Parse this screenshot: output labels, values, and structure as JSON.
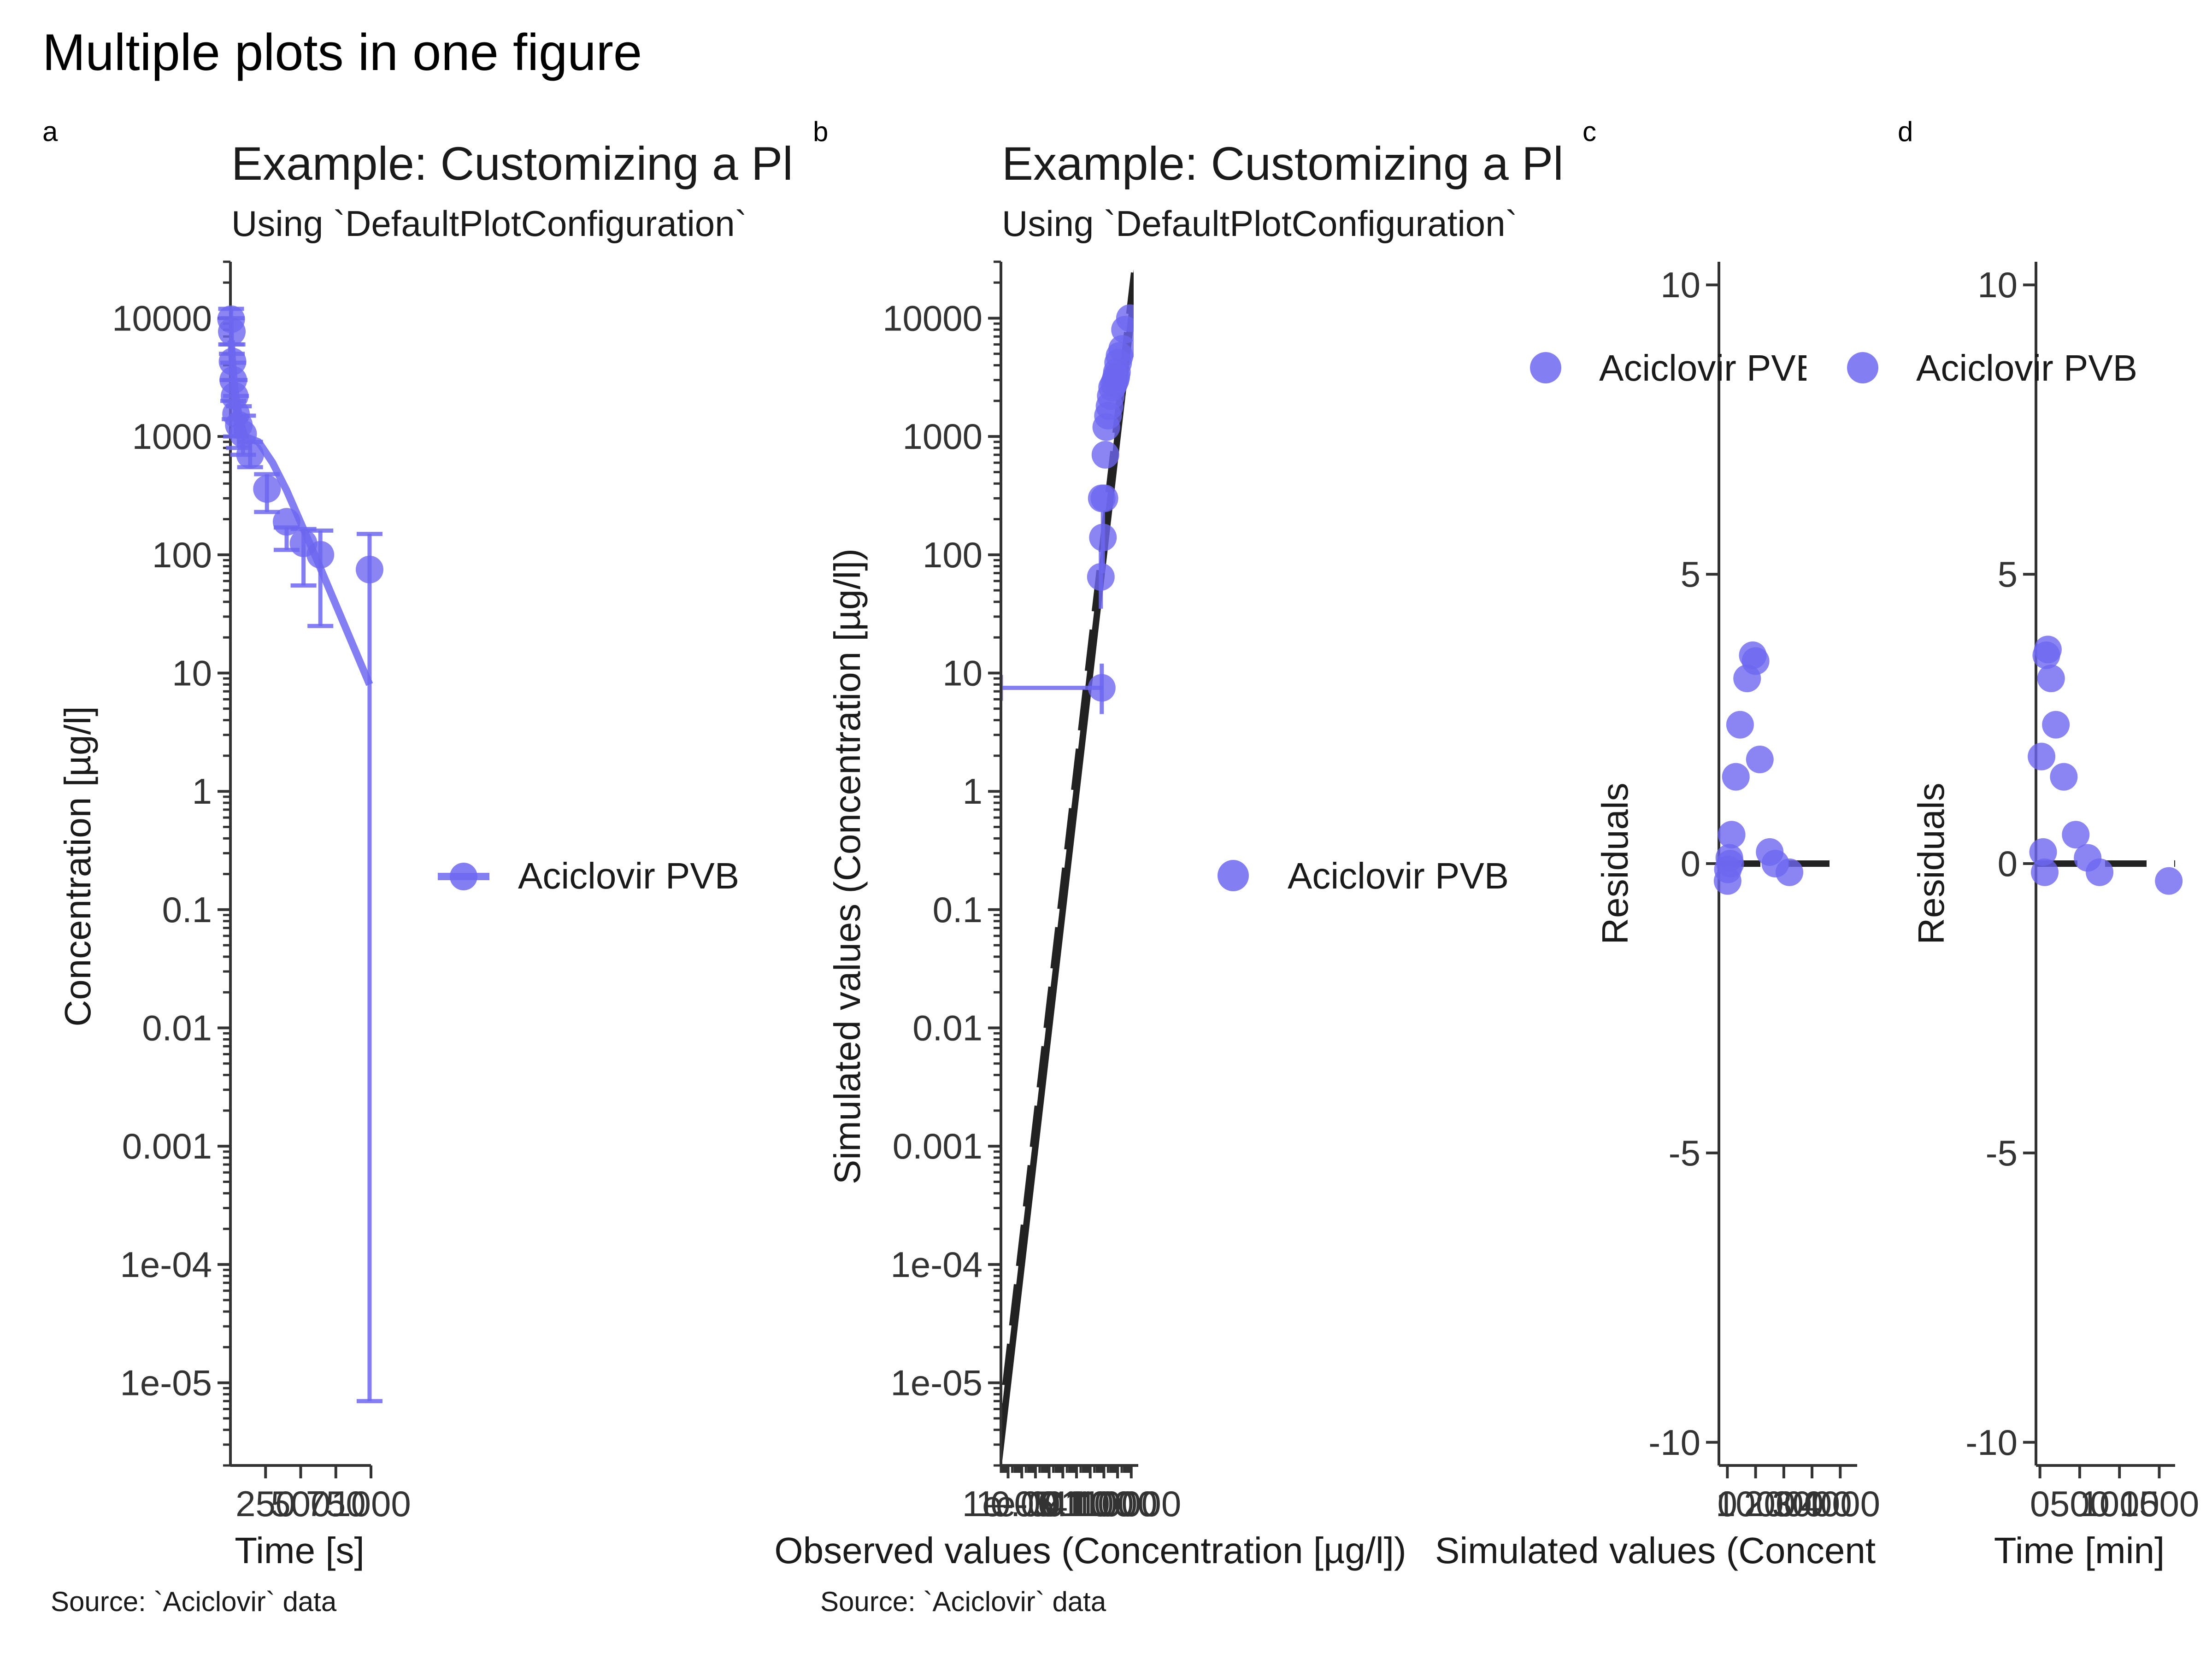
{
  "figure": {
    "title": "Multiple plots in one figure",
    "caption": "Source: `Aciclovir` data"
  },
  "colors": {
    "series": "#6d67f0",
    "identity": "#222222",
    "axis": "#333333"
  },
  "chart_data": [
    {
      "tag": "a",
      "type": "line",
      "title": "Example: Customizing a Plot",
      "subtitle": "Using `DefaultPlotConfiguration`",
      "xlabel": "Time [s]",
      "ylabel": "Concentration [µg/l]",
      "xscale": "linear",
      "yscale": "log",
      "xlim": [
        0,
        1000
      ],
      "ylim": [
        2e-06,
        30000
      ],
      "x_ticks": [
        250,
        500,
        750,
        1000
      ],
      "x_tick_labels": [
        "250",
        "500",
        "750",
        "1000"
      ],
      "y_ticks": [
        1e-05,
        0.0001,
        0.001,
        0.01,
        0.1,
        1,
        10,
        100,
        1000,
        10000
      ],
      "y_tick_labels": [
        "1e-05",
        "1e-04",
        "0.001",
        "0.01",
        "0.1",
        "1",
        "10",
        "100",
        "1000",
        "10000"
      ],
      "legend": {
        "position": "right",
        "entries": [
          "Aciclovir PVB"
        ]
      },
      "series": [
        {
          "name": "Aciclovir PVB",
          "points": {
            "x": [
              5,
              10,
              15,
              20,
              30,
              40,
              60,
              90,
              140,
              260,
              400,
              520,
              640,
              990
            ],
            "y": [
              9800,
              7700,
              4300,
              3000,
              2200,
              1550,
              1250,
              1050,
              700,
              360,
              190,
              125,
              100,
              75
            ],
            "ymin": [
              6000,
              5000,
              3000,
              2000,
              1400,
              1000,
              800,
              700,
              550,
              230,
              110,
              55,
              25,
              7e-06
            ],
            "ymax": [
              12000,
              10000,
              6000,
              4200,
              3000,
              2200,
              1800,
              1500,
              900,
              480,
              170,
              165,
              160,
              150
            ]
          },
          "line": {
            "x": [
              5,
              15,
              30,
              60,
              100,
              200,
              300,
              400,
              600,
              990
            ],
            "y": [
              6500,
              4200,
              2600,
              1500,
              1000,
              900,
              600,
              350,
              100,
              8
            ]
          }
        }
      ]
    },
    {
      "tag": "b",
      "type": "scatter",
      "title": "Example: Customizing a Plot",
      "subtitle": "Using `DefaultPlotConfiguration`",
      "xlabel": "Observed values (Concentration [µg/l])",
      "ylabel": "Simulated values (Concentration [µg/l])",
      "xscale": "log",
      "yscale": "log",
      "xlim": [
        3e-06,
        15000
      ],
      "ylim": [
        2e-06,
        30000
      ],
      "x_ticks": [
        1e-05,
        0.0001,
        0.001,
        0.01,
        0.1,
        1,
        10,
        100,
        1000,
        10000
      ],
      "x_tick_labels": [
        "1e-05",
        "1e-04",
        "0.001",
        "0.01",
        "0.1",
        "1",
        "10",
        "100",
        "1000",
        "10000"
      ],
      "y_ticks": [
        1e-05,
        0.0001,
        0.001,
        0.01,
        0.1,
        1,
        10,
        100,
        1000,
        10000
      ],
      "y_tick_labels": [
        "1e-05",
        "1e-04",
        "0.001",
        "0.01",
        "0.1",
        "1",
        "10",
        "100",
        "1000",
        "10000"
      ],
      "identity_lines": [
        1,
        1.5
      ],
      "legend": {
        "position": "right",
        "entries": [
          "Aciclovir PVB"
        ]
      },
      "series": [
        {
          "name": "Aciclovir PVB",
          "x": [
            70,
            60,
            85,
            70,
            110,
            130,
            150,
            200,
            260,
            320,
            400,
            550,
            700,
            800,
            900,
            1100,
            1400,
            2200,
            3500,
            8000
          ],
          "y": [
            7.5,
            65,
            140,
            300,
            300,
            700,
            1200,
            1500,
            1800,
            2200,
            2600,
            2800,
            3000,
            3200,
            3500,
            4200,
            4800,
            5500,
            8000,
            10000
          ],
          "xmin": [
            3e-06,
            null,
            null,
            null,
            null,
            null,
            null,
            null,
            null,
            null,
            null,
            null,
            null,
            null,
            null,
            null,
            null,
            null,
            null,
            null
          ],
          "xmax": [
            90,
            null,
            null,
            null,
            null,
            null,
            null,
            null,
            null,
            null,
            null,
            null,
            null,
            null,
            null,
            null,
            null,
            null,
            null,
            null
          ],
          "ymin": [
            4.5,
            35,
            70,
            null,
            null,
            null,
            null,
            null,
            null,
            null,
            null,
            null,
            null,
            null,
            null,
            null,
            null,
            null,
            null,
            null
          ],
          "ymax": [
            12,
            110,
            230,
            null,
            null,
            null,
            null,
            null,
            null,
            null,
            null,
            null,
            null,
            null,
            null,
            null,
            null,
            null,
            null,
            null
          ]
        }
      ]
    },
    {
      "tag": "c",
      "type": "scatter",
      "xlabel": "Simulated values (Concentration [µg/l])",
      "ylabel": "Residuals",
      "xlim": [
        -300,
        4600
      ],
      "ylim": [
        -10.4,
        10.4
      ],
      "x_ticks": [
        0,
        1000,
        2000,
        3000,
        4000
      ],
      "x_tick_labels": [
        "0",
        "1000",
        "2000",
        "3000",
        "4000"
      ],
      "y_ticks": [
        -10,
        -5,
        0,
        5,
        10
      ],
      "y_tick_labels": [
        "-10",
        "-5",
        "0",
        "5",
        "10"
      ],
      "reference_line": 0,
      "legend": {
        "position": "top",
        "entries": [
          "Aciclovir PVB"
        ]
      },
      "series": [
        {
          "name": "Aciclovir PVB",
          "x": [
            8,
            20,
            70,
            100,
            150,
            300,
            450,
            700,
            900,
            1000,
            1150,
            1500,
            1700,
            2200
          ],
          "y": [
            -0.3,
            -0.1,
            0.1,
            0,
            0.5,
            1.5,
            2.4,
            3.2,
            3.6,
            3.5,
            1.8,
            0.2,
            0,
            -0.15
          ]
        }
      ]
    },
    {
      "tag": "d",
      "type": "scatter",
      "xlabel": "Time [min]",
      "ylabel": "Residuals",
      "xlim": [
        -50,
        1700
      ],
      "ylim": [
        -10.4,
        10.4
      ],
      "x_ticks": [
        0,
        500,
        1000,
        1500
      ],
      "x_tick_labels": [
        "0",
        "500",
        "1000",
        "1500"
      ],
      "y_ticks": [
        -10,
        -5,
        0,
        5,
        10
      ],
      "y_tick_labels": [
        "-10",
        "-5",
        "0",
        "5",
        "10"
      ],
      "reference_line": 0,
      "legend": {
        "position": "top",
        "entries": [
          "Aciclovir PVB"
        ]
      },
      "series": [
        {
          "name": "Aciclovir PVB",
          "x": [
            20,
            40,
            60,
            80,
            100,
            140,
            200,
            300,
            450,
            600,
            750,
            1620
          ],
          "y": [
            1.85,
            0.2,
            -0.15,
            3.6,
            3.7,
            3.2,
            2.4,
            1.5,
            0.5,
            0.1,
            -0.15,
            -0.3
          ]
        }
      ]
    }
  ]
}
